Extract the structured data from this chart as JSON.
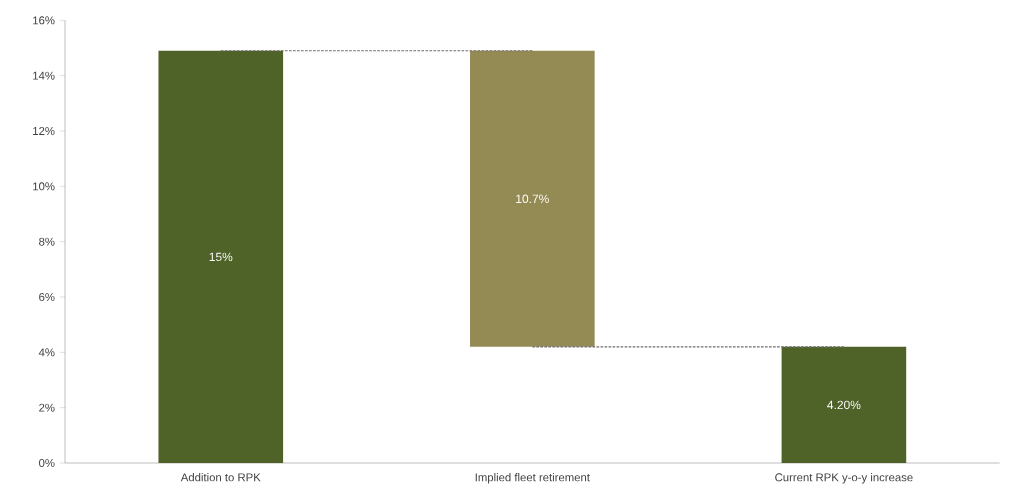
{
  "chart_data": {
    "type": "bar",
    "categories": [
      "Addition to RPK",
      "Implied fleet retirement",
      "Current RPK y-o-y increase"
    ],
    "values": [
      14.9,
      10.7,
      4.2
    ],
    "base": [
      0,
      4.2,
      0
    ],
    "colors": [
      "#4f6228",
      "#948a54",
      "#4f6228"
    ],
    "value_labels": [
      "15%",
      "10.7%",
      "4.20%"
    ],
    "ylim": [
      0,
      16
    ],
    "yticks": [
      {
        "value": 0,
        "label": "0%"
      },
      {
        "value": 2,
        "label": "2%"
      },
      {
        "value": 4,
        "label": "4%"
      },
      {
        "value": 6,
        "label": "6%"
      },
      {
        "value": 8,
        "label": "8%"
      },
      {
        "value": 10,
        "label": "10%"
      },
      {
        "value": 12,
        "label": "12%"
      },
      {
        "value": 14,
        "label": "14%"
      },
      {
        "value": 16,
        "label": "16%"
      }
    ],
    "series": [
      {
        "type": "line",
        "color": "#6f6f6f",
        "line_style": "dashed",
        "values": [
          14.9,
          14.9,
          null
        ]
      },
      {
        "type": "line",
        "color": "#6f6f6f",
        "line_style": "dashed",
        "values": [
          null,
          4.2,
          4.2
        ]
      }
    ],
    "grid": false
  }
}
